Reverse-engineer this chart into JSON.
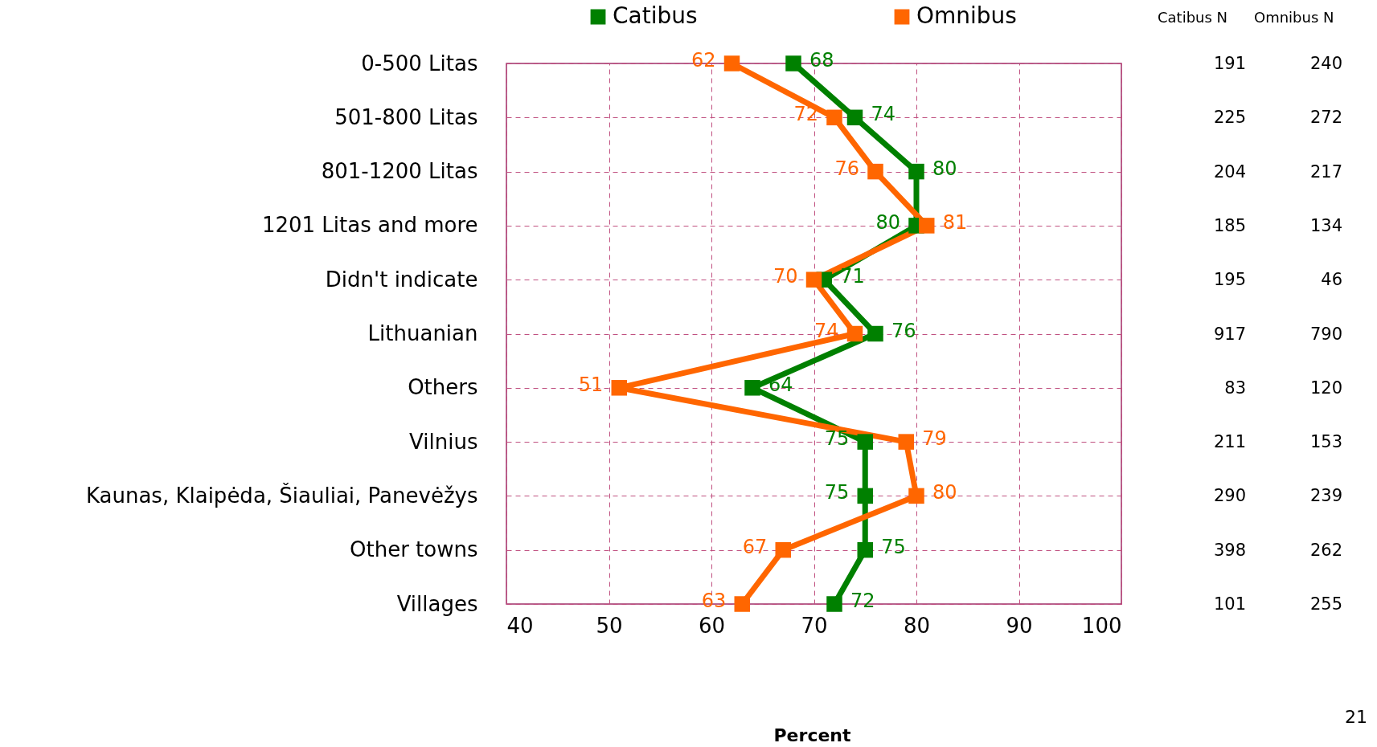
{
  "chart_data": {
    "type": "line",
    "orientation": "horizontal",
    "categories": [
      "0-500 Litas",
      "501-800 Litas",
      "801-1200 Litas",
      "1201 Litas and more",
      "Didn't indicate",
      "Lithuanian",
      "Others",
      "Vilnius",
      "Kaunas, Klaipėda, Šiauliai, Panevėžys",
      "Other towns",
      "Villages"
    ],
    "series": [
      {
        "name": "Catibus",
        "color": "#008000",
        "values": [
          68,
          74,
          80,
          80,
          71,
          76,
          64,
          75,
          75,
          75,
          72
        ]
      },
      {
        "name": "Omnibus",
        "color": "#ff6600",
        "values": [
          62,
          72,
          76,
          81,
          70,
          74,
          51,
          79,
          80,
          67,
          63
        ]
      }
    ],
    "xlim": [
      40,
      100
    ],
    "xticks": [
      40,
      50,
      60,
      70,
      80,
      90,
      100
    ],
    "grid": true,
    "line_style": "solid",
    "marker": "square",
    "legend": "top",
    "data_labels": true,
    "annotations": [
      "Catibus N",
      "Omnibus N",
      "191",
      "240",
      "225",
      "272",
      "204",
      "217",
      "185",
      "134",
      "195",
      "46",
      "917",
      "790",
      "83",
      "120",
      "211",
      "153",
      "290",
      "239",
      "398",
      "262",
      "101",
      "255",
      "Percent",
      "21"
    ]
  }
}
